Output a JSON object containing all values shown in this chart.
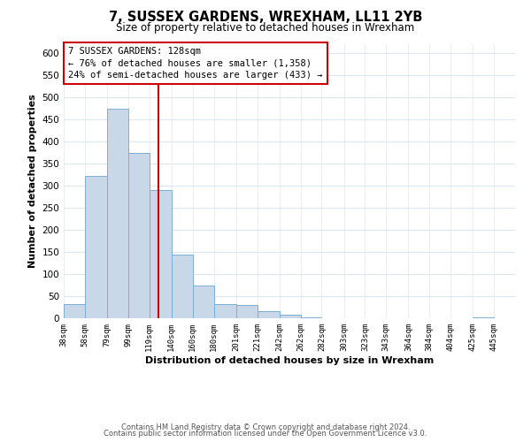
{
  "title": "7, SUSSEX GARDENS, WREXHAM, LL11 2YB",
  "subtitle": "Size of property relative to detached houses in Wrexham",
  "xlabel": "Distribution of detached houses by size in Wrexham",
  "ylabel": "Number of detached properties",
  "bar_left_edges": [
    38,
    58,
    79,
    99,
    119,
    140,
    160,
    180,
    201,
    221,
    242,
    262,
    282,
    303,
    323,
    343,
    364,
    384,
    404,
    425
  ],
  "bar_heights": [
    32,
    322,
    474,
    375,
    291,
    145,
    75,
    32,
    30,
    17,
    8,
    2,
    1,
    1,
    0,
    0,
    0,
    0,
    0,
    3
  ],
  "bar_widths": [
    20,
    21,
    20,
    20,
    21,
    20,
    20,
    21,
    20,
    21,
    20,
    20,
    21,
    20,
    20,
    21,
    20,
    20,
    21,
    20
  ],
  "bar_color": "#c8d8e8",
  "bar_edgecolor": "#7bafd4",
  "property_value": 128,
  "vline_color": "#cc0000",
  "annotation_box_edgecolor": "#cc0000",
  "annotation_title": "7 SUSSEX GARDENS: 128sqm",
  "annotation_line1": "← 76% of detached houses are smaller (1,358)",
  "annotation_line2": "24% of semi-detached houses are larger (433) →",
  "ylim": [
    0,
    620
  ],
  "yticks": [
    0,
    50,
    100,
    150,
    200,
    250,
    300,
    350,
    400,
    450,
    500,
    550,
    600
  ],
  "xtick_labels": [
    "38sqm",
    "58sqm",
    "79sqm",
    "99sqm",
    "119sqm",
    "140sqm",
    "160sqm",
    "180sqm",
    "201sqm",
    "221sqm",
    "242sqm",
    "262sqm",
    "282sqm",
    "303sqm",
    "323sqm",
    "343sqm",
    "364sqm",
    "384sqm",
    "404sqm",
    "425sqm",
    "445sqm"
  ],
  "xtick_positions": [
    38,
    58,
    79,
    99,
    119,
    140,
    160,
    180,
    201,
    221,
    242,
    262,
    282,
    303,
    323,
    343,
    364,
    384,
    404,
    425,
    445
  ],
  "background_color": "#ffffff",
  "grid_color": "#dce8f0",
  "footer_line1": "Contains HM Land Registry data © Crown copyright and database right 2024.",
  "footer_line2": "Contains public sector information licensed under the Open Government Licence v3.0.",
  "xlim_left": 38,
  "xlim_right": 465
}
